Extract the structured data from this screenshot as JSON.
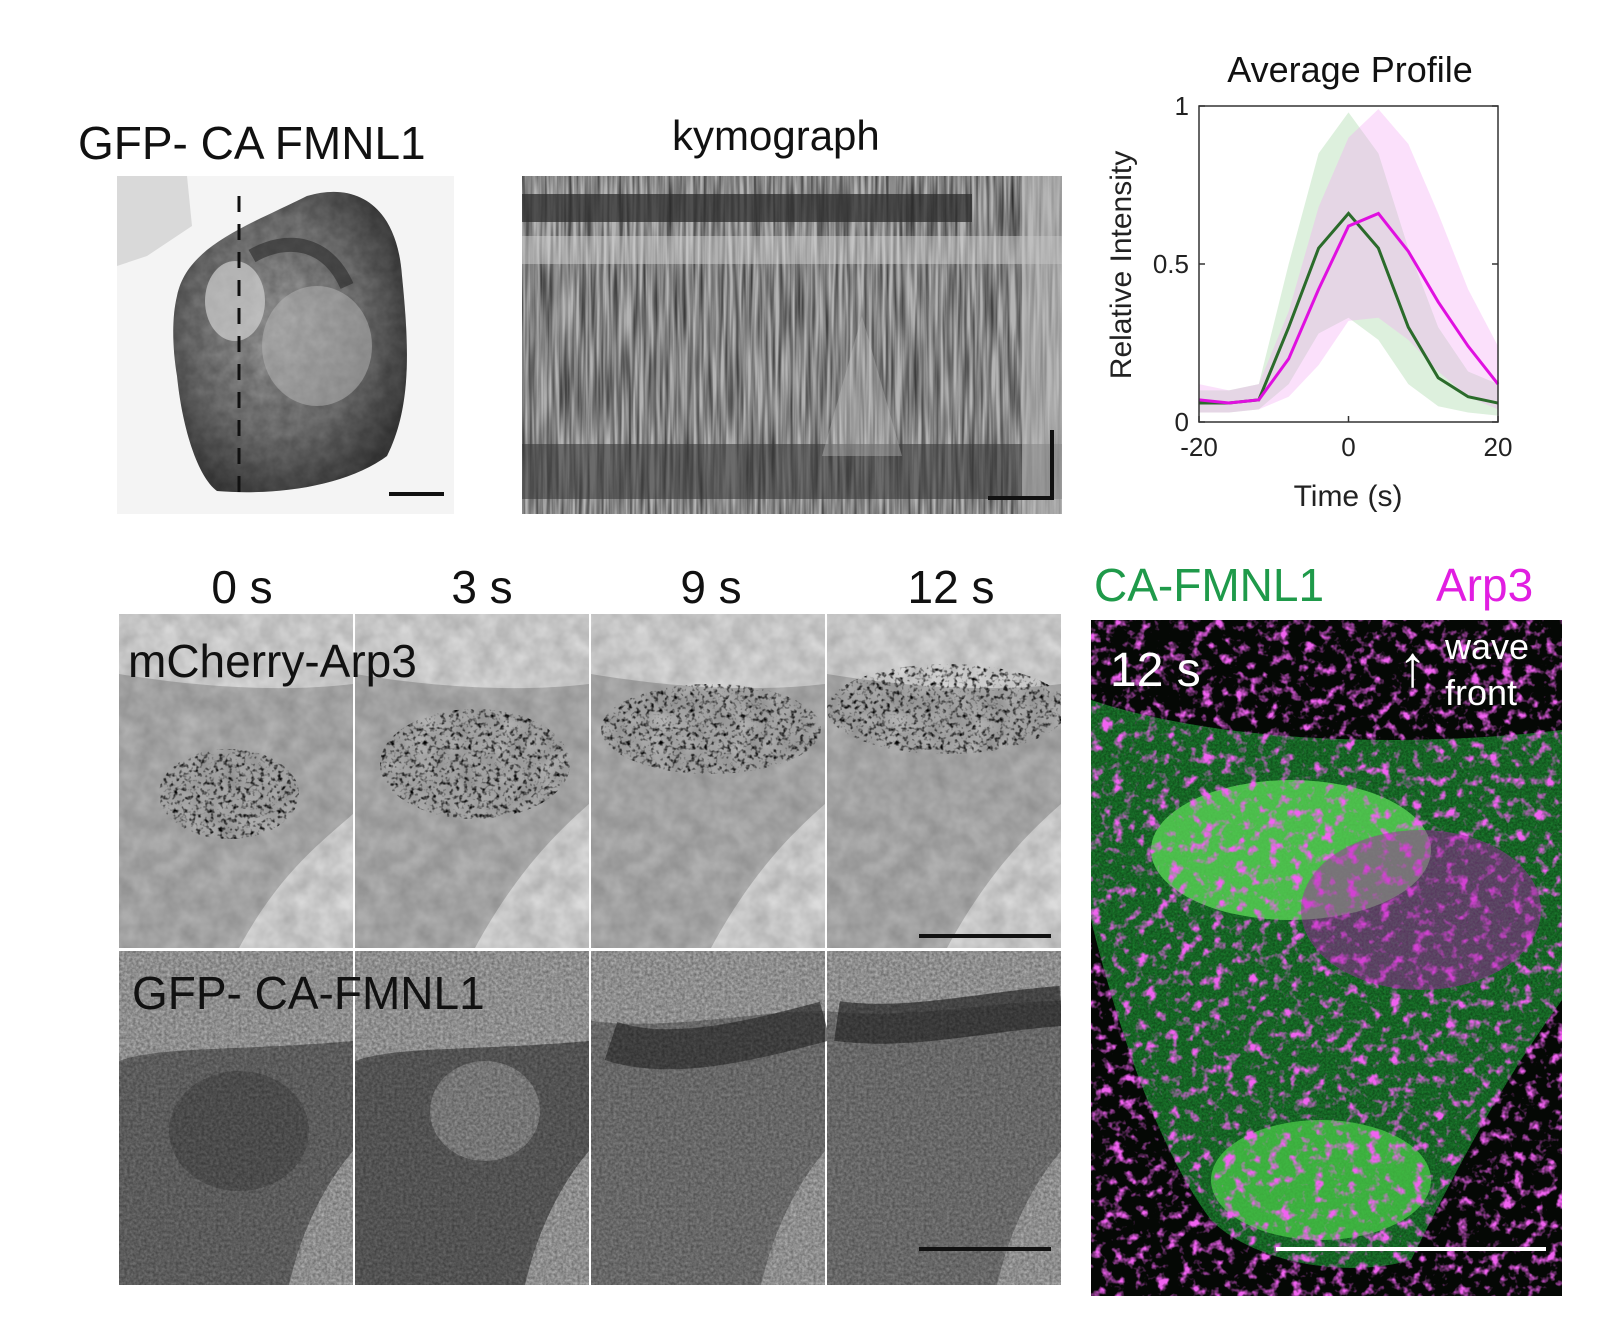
{
  "panels": {
    "cell": {
      "title": "GFP- CA FMNL1"
    },
    "kymo": {
      "title": "kymograph"
    },
    "chart_title": "Average Profile"
  },
  "timelapse": {
    "times": [
      "0 s",
      "3 s",
      "9 s",
      "12 s"
    ],
    "row1_label": "mCherry-Arp3",
    "row2_label": "GFP- CA-FMNL1"
  },
  "merge": {
    "label_green": "CA-FMNL1",
    "label_magenta": "Arp3",
    "time": "12 s",
    "arrow_glyph": "↑",
    "annotation_line1": "wave",
    "annotation_line2": "front",
    "green_color": "#1f9a4a",
    "magenta_color": "#e11ee1"
  },
  "chart_data": {
    "type": "line",
    "title": "Average Profile",
    "xlabel": "Time (s)",
    "ylabel": "Relative Intensity",
    "xlim": [
      -20,
      20
    ],
    "ylim": [
      0,
      1
    ],
    "xticks": [
      "-20",
      "0",
      "20"
    ],
    "yticks": [
      "0",
      "0.5",
      "1"
    ],
    "series": [
      {
        "color": "#2b6b2b",
        "band_color": "#9fd39f",
        "x": [
          -20,
          -16,
          -12,
          -8,
          -4,
          0,
          4,
          8,
          12,
          16,
          20
        ],
        "values": [
          0.06,
          0.06,
          0.07,
          0.3,
          0.55,
          0.66,
          0.55,
          0.3,
          0.14,
          0.08,
          0.06
        ],
        "upper": [
          0.1,
          0.1,
          0.12,
          0.5,
          0.85,
          0.98,
          0.85,
          0.55,
          0.3,
          0.16,
          0.12
        ],
        "lower": [
          0.03,
          0.03,
          0.04,
          0.12,
          0.28,
          0.33,
          0.26,
          0.12,
          0.05,
          0.03,
          0.02
        ]
      },
      {
        "color": "#e010e0",
        "band_color": "#f3a6f3",
        "x": [
          -20,
          -16,
          -12,
          -8,
          -4,
          0,
          4,
          8,
          12,
          16,
          20
        ],
        "values": [
          0.07,
          0.06,
          0.07,
          0.2,
          0.42,
          0.62,
          0.66,
          0.54,
          0.38,
          0.24,
          0.12
        ],
        "upper": [
          0.12,
          0.1,
          0.12,
          0.35,
          0.68,
          0.9,
          0.99,
          0.88,
          0.66,
          0.42,
          0.24
        ],
        "lower": [
          0.03,
          0.03,
          0.04,
          0.08,
          0.18,
          0.32,
          0.33,
          0.26,
          0.16,
          0.08,
          0.04
        ]
      }
    ]
  }
}
